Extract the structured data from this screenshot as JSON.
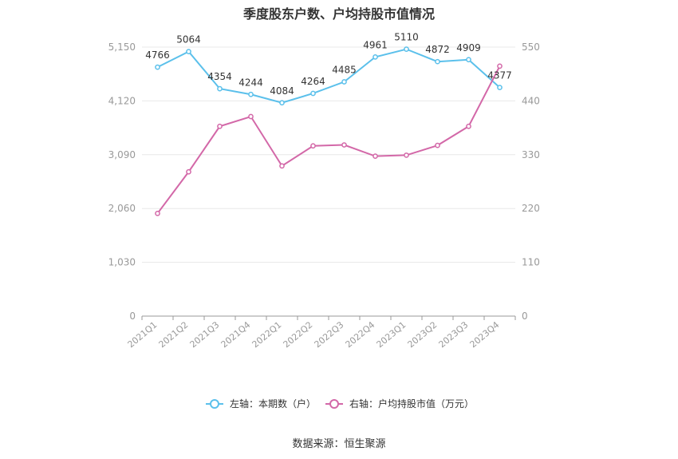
{
  "title": "季度股东户数、户均持股市值情况",
  "source": "数据来源：恒生聚源",
  "colors": {
    "left_series": "#5bc0eb",
    "right_series": "#d368a8",
    "grid": "#e8e8e8",
    "axis": "#999999"
  },
  "chart_data": {
    "type": "line",
    "title": "季度股东户数、户均持股市值情况",
    "categories": [
      "2021Q1",
      "2021Q2",
      "2021Q3",
      "2021Q4",
      "2022Q1",
      "2022Q2",
      "2022Q3",
      "2022Q4",
      "2023Q1",
      "2023Q2",
      "2023Q3",
      "2023Q4"
    ],
    "left_axis": {
      "ticks": [
        "0",
        "1,030",
        "2,060",
        "3,090",
        "4,120",
        "5,150"
      ],
      "ylim": [
        0,
        5150
      ]
    },
    "right_axis": {
      "ticks": [
        "0",
        "110",
        "220",
        "330",
        "440",
        "550"
      ],
      "ylim": [
        0,
        550
      ]
    },
    "series": [
      {
        "name": "左轴：本期数（户）",
        "axis": "left",
        "values": [
          4766,
          5064,
          4354,
          4244,
          4084,
          4264,
          4485,
          4961,
          5110,
          4872,
          4909,
          4377
        ],
        "labels": [
          "4766",
          "5064",
          "4354",
          "4244",
          "4084",
          "4264",
          "4485",
          "4961",
          "5110",
          "4872",
          "4909",
          "4377"
        ]
      },
      {
        "name": "右轴：户均持股市值（万元）",
        "axis": "right",
        "values": [
          210,
          295,
          388,
          408,
          307,
          348,
          350,
          327,
          329,
          349,
          388,
          511
        ]
      }
    ],
    "grid": true,
    "legend_position": "bottom"
  }
}
